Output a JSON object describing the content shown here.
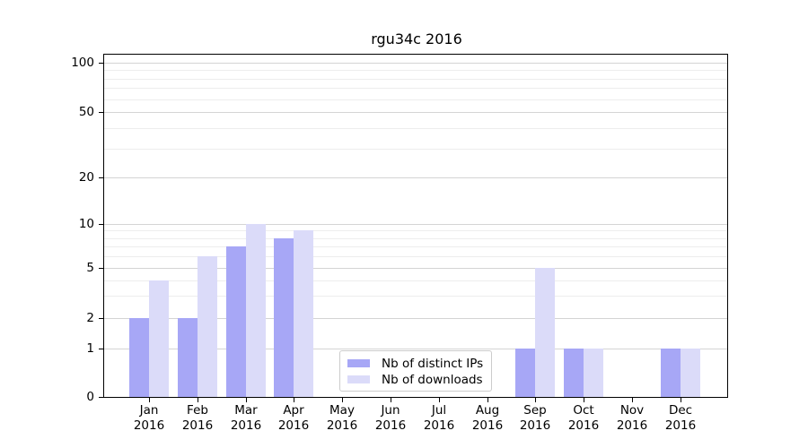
{
  "chart_data": {
    "type": "bar",
    "title": "rgu34c 2016",
    "categories": [
      "Jan 2016",
      "Feb 2016",
      "Mar 2016",
      "Apr 2016",
      "May 2016",
      "Jun 2016",
      "Jul 2016",
      "Aug 2016",
      "Sep 2016",
      "Oct 2016",
      "Nov 2016",
      "Dec 2016"
    ],
    "x_tick_months": [
      "Jan",
      "Feb",
      "Mar",
      "Apr",
      "May",
      "Jun",
      "Jul",
      "Aug",
      "Sep",
      "Oct",
      "Nov",
      "Dec"
    ],
    "x_tick_year": "2016",
    "series": [
      {
        "name": "Nb of distinct IPs",
        "color": "#a7a7f6",
        "values": [
          2,
          2,
          7,
          8,
          0,
          0,
          0,
          0,
          1,
          1,
          0,
          1
        ]
      },
      {
        "name": "Nb of downloads",
        "color": "#dbdbf9",
        "values": [
          4,
          6,
          10,
          9,
          0,
          0,
          0,
          0,
          5,
          1,
          0,
          1
        ]
      }
    ],
    "y_ticks": [
      0,
      1,
      2,
      5,
      10,
      20,
      50,
      100
    ],
    "y_minor_ticks": [
      3,
      4,
      6,
      7,
      8,
      9,
      30,
      40,
      60,
      70,
      80,
      90
    ],
    "scale": "symlog",
    "ylim": [
      0,
      114
    ],
    "grid": true,
    "legend_position": "lower center",
    "colors": {
      "grid_major": "#d4d4d4",
      "grid_minor": "#ededed",
      "axis": "#000000",
      "background": "#ffffff"
    }
  }
}
